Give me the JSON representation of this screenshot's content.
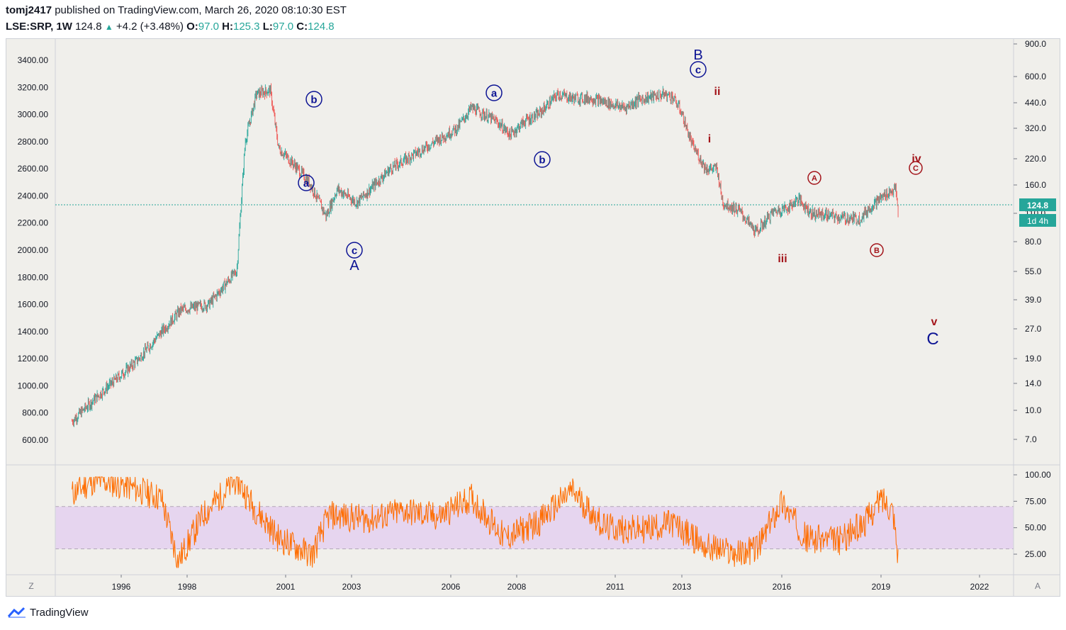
{
  "header": {
    "user": "tomj2417",
    "published_text": "published on TradingView.com, March 26, 2020 08:10:30 EST",
    "symbol_line": "LSE:SRP, 1W",
    "last": "124.8",
    "change": "+4.2 (+3.48%)",
    "open_label": "O:",
    "open": "97.0",
    "high_label": "H:",
    "high": "125.3",
    "low_label": "L:",
    "low": "97.0",
    "close_label": "C:",
    "close": "124.8"
  },
  "colors": {
    "up": "#26a69a",
    "down": "#ef5350",
    "rsi": "#ff6d00",
    "wave_blue": "#0d1494",
    "wave_red": "#a3141a",
    "last_price_bg": "#26a69a",
    "rsi_band": "#e6d5ef"
  },
  "chart_data": [
    {
      "type": "line",
      "description_role": "price",
      "x": [
        "1995-07",
        "1996-06",
        "1997-06",
        "1998-04",
        "1998-10",
        "1999-08",
        "2000-06",
        "2000-09",
        "2001-01",
        "2001-06",
        "2001-09",
        "2002-03",
        "2002-08",
        "2003-02",
        "2003-06",
        "2004-01",
        "2005-01",
        "2006-01",
        "2007-01",
        "2007-06",
        "2008-03",
        "2008-08",
        "2009-01",
        "2009-06",
        "2010-01",
        "2010-06",
        "2011-01",
        "2011-06",
        "2012-01",
        "2012-06",
        "2013-03",
        "2013-06",
        "2013-09",
        "2014-01",
        "2014-06",
        "2014-10",
        "2014-12",
        "2015-06",
        "2015-12",
        "2016-06",
        "2016-12",
        "2017-03",
        "2017-08",
        "2018-01",
        "2018-06",
        "2019-01",
        "2019-06",
        "2019-11",
        "2020-01",
        "2020-02",
        "2020-03"
      ],
      "y": [
        740,
        960,
        1180,
        1420,
        1560,
        1600,
        1850,
        2800,
        3150,
        3180,
        2750,
        2620,
        2500,
        2250,
        2450,
        2350,
        2600,
        2750,
        2900,
        3050,
        2950,
        2850,
        2950,
        3000,
        3150,
        3120,
        3120,
        3090,
        3050,
        3110,
        3150,
        3130,
        3030,
        2780,
        2600,
        2600,
        2350,
        2290,
        2130,
        2280,
        2320,
        2380,
        2270,
        2260,
        2240,
        2230,
        2340,
        2420,
        2440,
        2450,
        2230
      ],
      "ylim": [
        500,
        3500
      ],
      "y_ticks": [
        "3400.00",
        "3200.00",
        "3000.00",
        "2800.00",
        "2600.00",
        "2400.00",
        "2200.00",
        "2000.00",
        "1800.00",
        "1600.00",
        "1400.00",
        "1200.00",
        "1000.00",
        "800.00",
        "600.00"
      ],
      "right_ticks": [
        "900.0",
        "600.0",
        "440.0",
        "320.0",
        "220.0",
        "160.0",
        "110.0",
        "80.0",
        "55.0",
        "39.0",
        "27.0",
        "19.0",
        "14.0",
        "10.0",
        "7.0"
      ],
      "x_ticks": [
        "1996",
        "1998",
        "2001",
        "2003",
        "2006",
        "2008",
        "2011",
        "2013",
        "2016",
        "2019",
        "2022"
      ],
      "last_price": "124.8",
      "countdown": "1d 4h"
    },
    {
      "type": "line",
      "description_role": "rsi",
      "ylim": [
        0,
        100
      ],
      "y_ticks": [
        "100.00",
        "75.00",
        "50.00",
        "25.00"
      ],
      "band": [
        30,
        70
      ],
      "x": [
        "1995-07",
        "1996-03",
        "1997-02",
        "1998-03",
        "1998-09",
        "1999-06",
        "2000-06",
        "2000-12",
        "2001-09",
        "2002-09",
        "2003-03",
        "2004-06",
        "2005-06",
        "2006-06",
        "2007-06",
        "2008-06",
        "2009-06",
        "2010-06",
        "2011-06",
        "2012-06",
        "2013-06",
        "2014-06",
        "2015-06",
        "2016-01",
        "2016-09",
        "2017-06",
        "2018-06",
        "2019-03",
        "2019-09",
        "2020-01",
        "2020-03"
      ],
      "y": [
        82,
        95,
        90,
        78,
        18,
        62,
        96,
        70,
        40,
        24,
        62,
        58,
        66,
        60,
        78,
        40,
        55,
        85,
        50,
        48,
        54,
        32,
        25,
        32,
        75,
        40,
        38,
        55,
        78,
        68,
        20
      ]
    }
  ],
  "annotations": {
    "A_a": "a",
    "A_b": "b",
    "A_c": "c",
    "A": "A",
    "B_a": "a",
    "B_b": "b",
    "B_c": "c",
    "B": "B",
    "w_i": "i",
    "w_ii": "ii",
    "w_iii": "iii",
    "w_iv": "iv",
    "w_v": "v",
    "C_A": "A",
    "C_B": "B",
    "C_C": "C",
    "C": "C"
  },
  "corner_left": "Z",
  "corner_right": "A",
  "footer": {
    "brand": "TradingView"
  }
}
